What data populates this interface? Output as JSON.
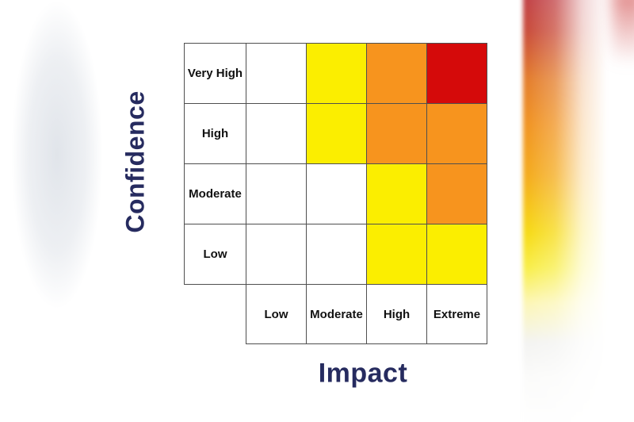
{
  "frame": {
    "background": "#ffffff"
  },
  "decor": {
    "left_band_color": "#e9ebef",
    "right_band_top_color": "#c4413e",
    "right_band_mid_color": "#f0901c",
    "right_band_lower_color": "#f8e81c",
    "right_band_bottom_color": "#ffffff"
  },
  "chart_data": {
    "type": "heatmap",
    "title": "",
    "xlabel": "Impact",
    "ylabel": "Confidence",
    "x_categories": [
      "Low",
      "Moderate",
      "High",
      "Extreme"
    ],
    "y_categories": [
      "Very High",
      "High",
      "Moderate",
      "Low"
    ],
    "cells": [
      [
        "none",
        "yellow",
        "orange",
        "red"
      ],
      [
        "none",
        "yellow",
        "orange",
        "orange"
      ],
      [
        "none",
        "none",
        "yellow",
        "orange"
      ],
      [
        "none",
        "none",
        "yellow",
        "yellow"
      ]
    ],
    "palette": {
      "none": "#ffffff",
      "yellow": "#fbee00",
      "orange": "#f7941e",
      "red": "#d50a0a"
    },
    "grid": "on",
    "grid_line_color": "#4f4f4f",
    "axis_title_color": "#262b5f",
    "category_label_color": "#111111",
    "legend_position": "none"
  }
}
